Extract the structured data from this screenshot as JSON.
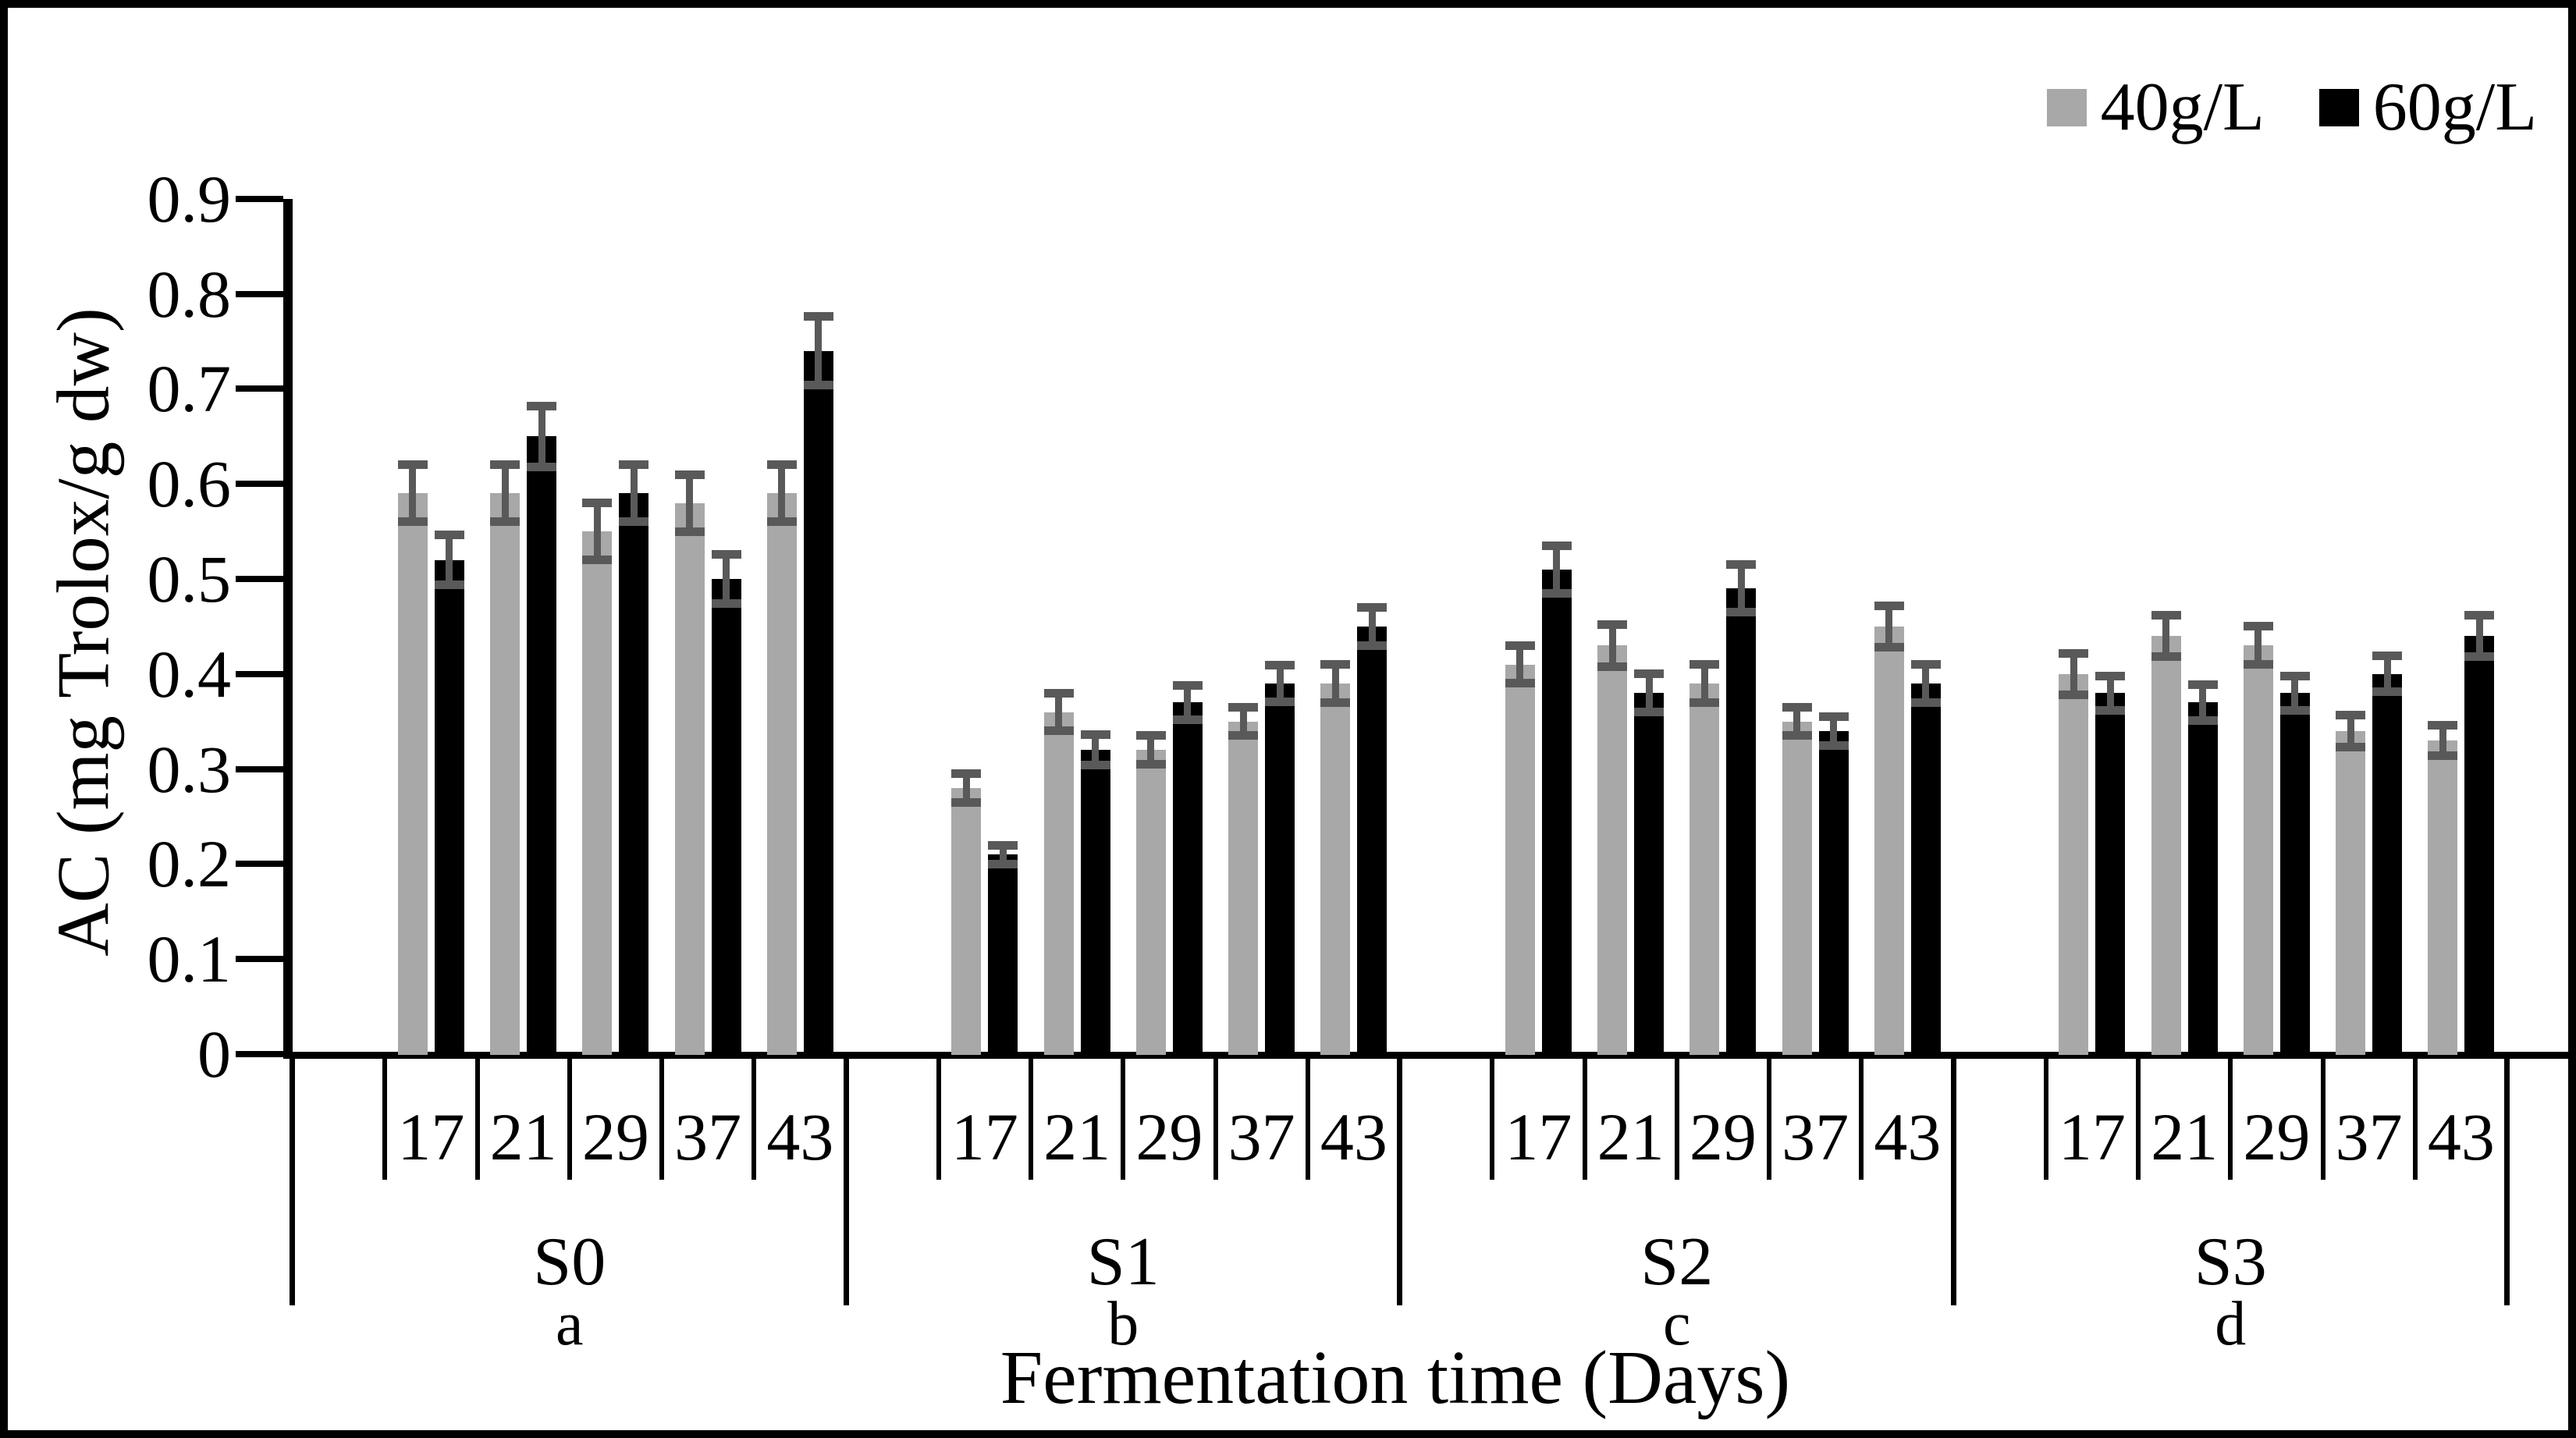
{
  "figure": {
    "background": "#ffffff",
    "border_color": "#000000"
  },
  "chart_data": {
    "type": "bar",
    "title": "",
    "xlabel": "Fermentation time (Days)",
    "ylabel": "AC (mg Trolox/g dw)",
    "ylim": [
      0,
      0.9
    ],
    "ytick_step": 0.1,
    "yticks": [
      "0",
      "0.1",
      "0.2",
      "0.3",
      "0.4",
      "0.5",
      "0.6",
      "0.7",
      "0.8",
      "0.9"
    ],
    "grid": false,
    "legend_position": "top-right",
    "error_bar_color": "#595959",
    "categories": [
      "17",
      "21",
      "29",
      "37",
      "43"
    ],
    "groups": [
      {
        "label": "S0",
        "letter": "a"
      },
      {
        "label": "S1",
        "letter": "b"
      },
      {
        "label": "S2",
        "letter": "c"
      },
      {
        "label": "S3",
        "letter": "d"
      }
    ],
    "series": [
      {
        "name": "40g/L",
        "color": "#a8a8a8",
        "values": [
          [
            0.59,
            0.59,
            0.55,
            0.58,
            0.59
          ],
          [
            0.28,
            0.36,
            0.32,
            0.35,
            0.39
          ],
          [
            0.41,
            0.43,
            0.39,
            0.35,
            0.45
          ],
          [
            0.4,
            0.44,
            0.43,
            0.34,
            0.33
          ]
        ],
        "errors": [
          [
            0.03,
            0.03,
            0.03,
            0.03,
            0.03
          ],
          [
            0.015,
            0.02,
            0.015,
            0.015,
            0.02
          ],
          [
            0.02,
            0.022,
            0.02,
            0.015,
            0.022
          ],
          [
            0.022,
            0.022,
            0.02,
            0.017,
            0.016
          ]
        ]
      },
      {
        "name": "60g/L",
        "color": "#000000",
        "values": [
          [
            0.52,
            0.65,
            0.59,
            0.5,
            0.74
          ],
          [
            0.21,
            0.32,
            0.37,
            0.39,
            0.45
          ],
          [
            0.51,
            0.38,
            0.49,
            0.34,
            0.39
          ],
          [
            0.38,
            0.37,
            0.38,
            0.4,
            0.44
          ]
        ],
        "errors": [
          [
            0.026,
            0.032,
            0.03,
            0.026,
            0.036
          ],
          [
            0.01,
            0.016,
            0.018,
            0.019,
            0.02
          ],
          [
            0.025,
            0.02,
            0.025,
            0.015,
            0.02
          ],
          [
            0.018,
            0.019,
            0.018,
            0.019,
            0.022
          ]
        ]
      }
    ]
  }
}
